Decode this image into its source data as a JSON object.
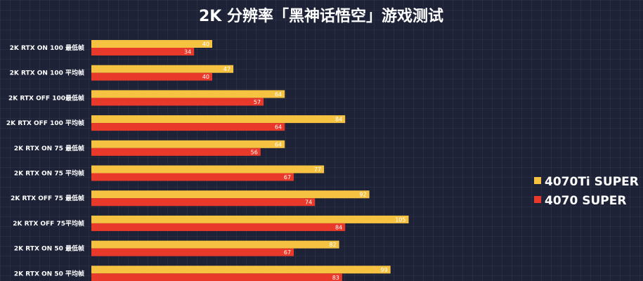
{
  "chart_data": {
    "type": "bar",
    "orientation": "horizontal",
    "title": "2K 分辨率「黑神话悟空」游戏测试",
    "xlabel": "",
    "ylabel": "",
    "grid": true,
    "legend_position": "right",
    "xlim": [
      0,
      110
    ],
    "categories": [
      "2K RTX ON 100 最低帧",
      "2K RTX ON 100 平均帧",
      "2K  RTX  OFF 100最低帧",
      "2K  RTX  OFF  100 平均帧",
      "2K RTX ON 75 最低帧",
      "2K RTX ON 75 平均帧",
      "2K  RTX  OFF 75 最低帧",
      "2K  RTX  OFF  75平均帧",
      "2K RTX ON  50 最低帧",
      "2K RTX ON 50  平均帧"
    ],
    "series": [
      {
        "name": "4070Ti SUPER",
        "color": "#f5c242",
        "values": [
          40,
          47,
          64,
          84,
          64,
          77,
          92,
          105,
          82,
          99
        ]
      },
      {
        "name": "4070 SUPER",
        "color": "#e8392a",
        "values": [
          34,
          40,
          57,
          64,
          56,
          67,
          74,
          84,
          67,
          83
        ]
      }
    ]
  }
}
